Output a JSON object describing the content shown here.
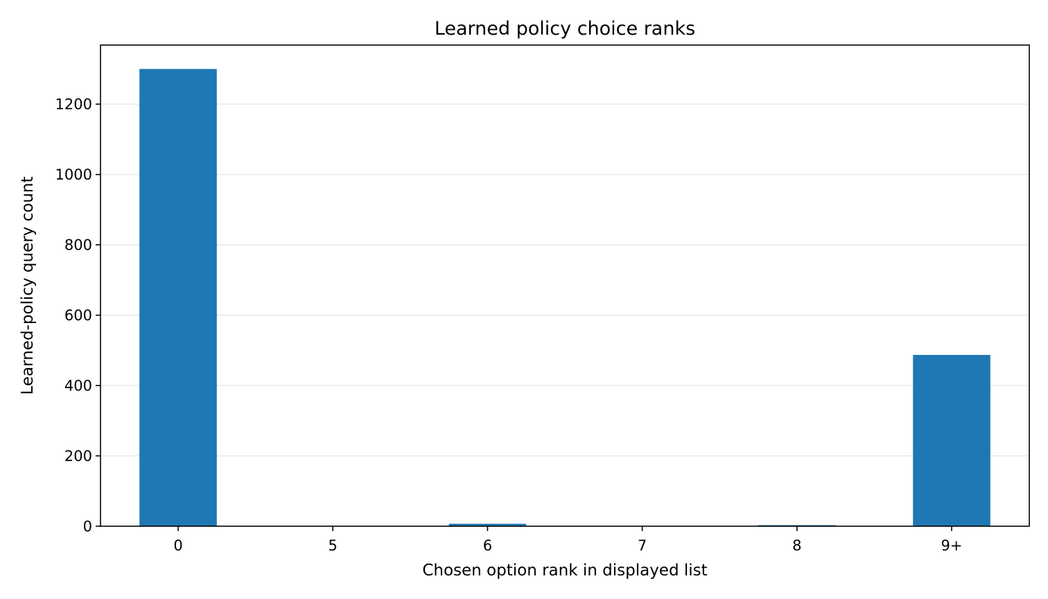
{
  "chart_data": {
    "type": "bar",
    "title": "Learned policy choice ranks",
    "xlabel": "Chosen option rank in displayed list",
    "ylabel": "Learned-policy query count",
    "categories": [
      "0",
      "5",
      "6",
      "7",
      "8",
      "9+"
    ],
    "values": [
      1300,
      0,
      7,
      0,
      3,
      487
    ],
    "ylim": [
      0,
      1368
    ],
    "yticks": [
      0,
      200,
      400,
      600,
      800,
      1000,
      1200
    ],
    "grid": "y-axis",
    "legend": "none",
    "bar_color": "#1f77b4"
  }
}
